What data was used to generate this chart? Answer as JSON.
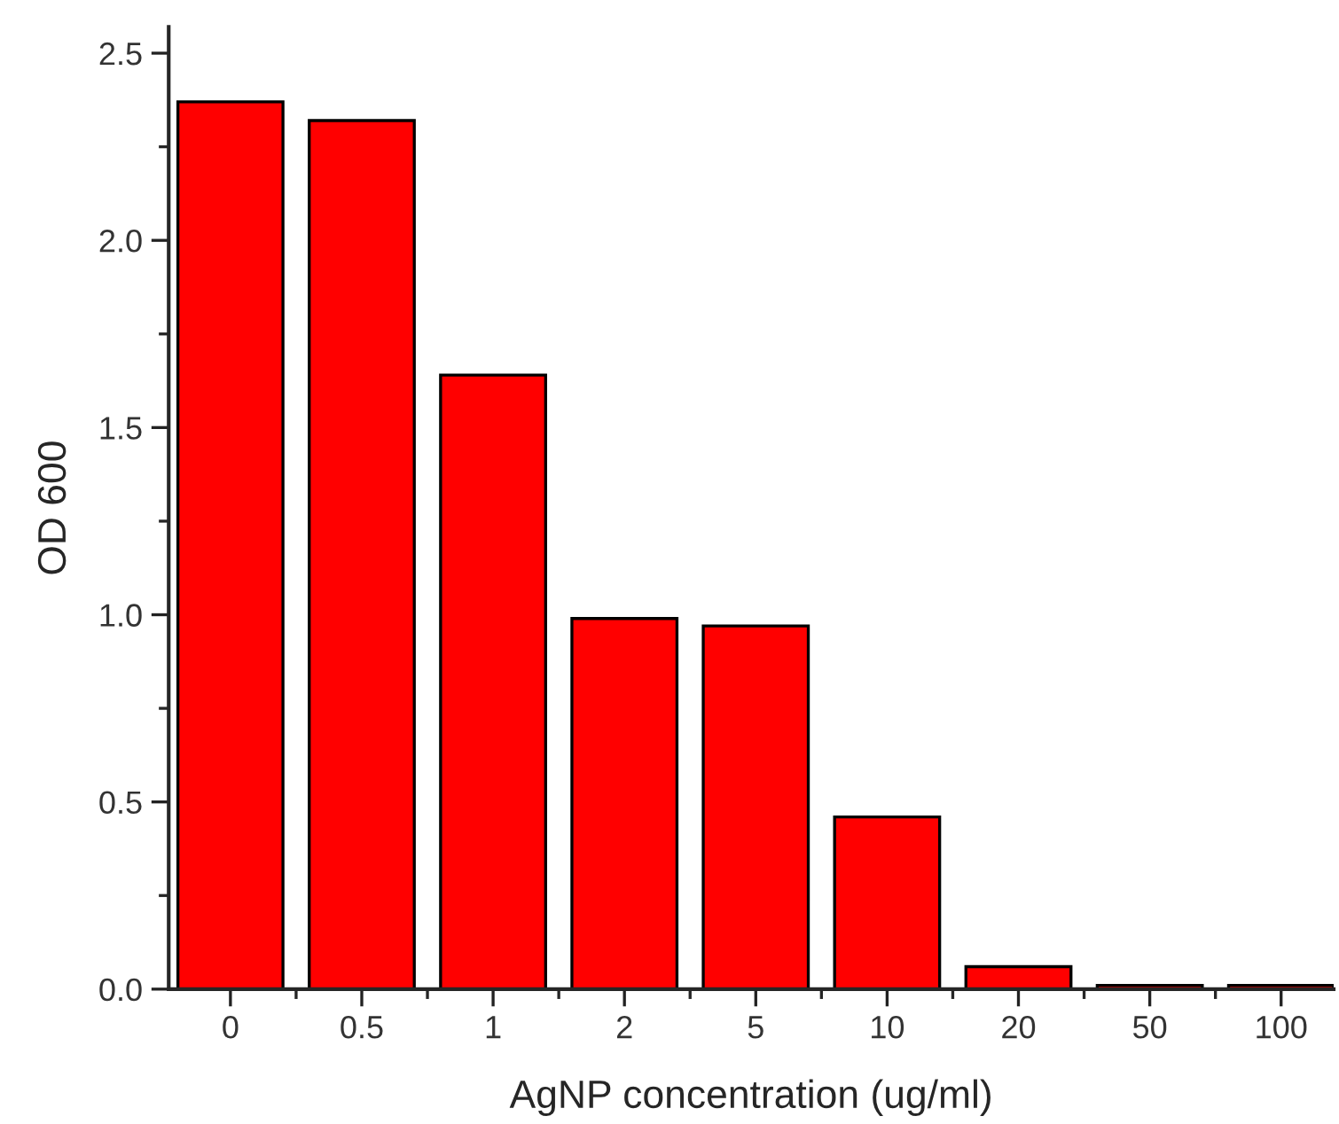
{
  "chart_data": {
    "type": "bar",
    "xlabel": "AgNP concentration (ug/ml)",
    "ylabel": "OD 600",
    "categories": [
      "0",
      "0.5",
      "1",
      "2",
      "5",
      "10",
      "20",
      "50",
      "100"
    ],
    "values": [
      2.37,
      2.32,
      1.64,
      0.99,
      0.97,
      0.46,
      0.06,
      0.01,
      0.01
    ],
    "color": "#ff0000",
    "ylim": [
      0,
      2.57
    ],
    "yticks": [
      {
        "value": 0,
        "label": "0.0"
      },
      {
        "value": 0.25,
        "label": null
      },
      {
        "value": 0.5,
        "label": "0.5"
      },
      {
        "value": 0.75,
        "label": null
      },
      {
        "value": 1,
        "label": "1.0"
      },
      {
        "value": 1.25,
        "label": null
      },
      {
        "value": 1.5,
        "label": "1.5"
      },
      {
        "value": 1.75,
        "label": null
      },
      {
        "value": 2,
        "label": "2.0"
      },
      {
        "value": 2.25,
        "label": null
      },
      {
        "value": 2.5,
        "label": "2.5"
      }
    ],
    "grid": false,
    "legend": false
  }
}
